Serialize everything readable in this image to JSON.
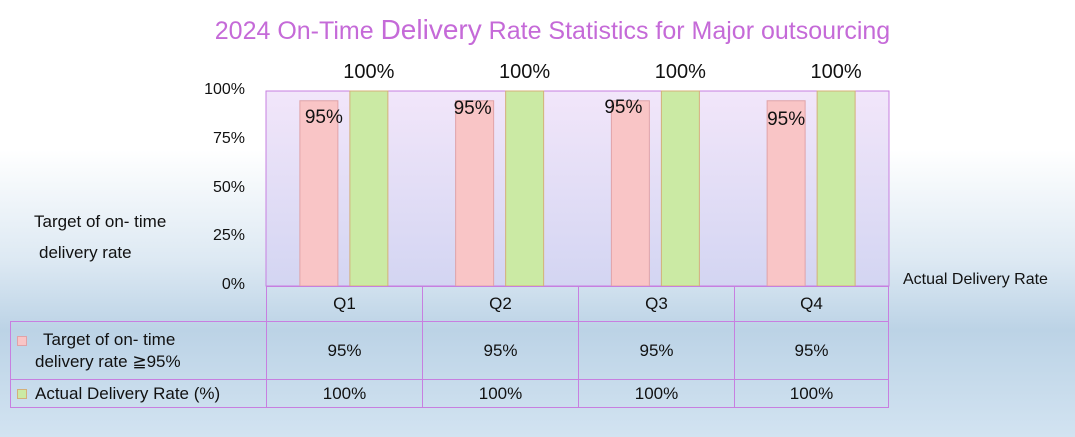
{
  "title": {
    "prefix": "2024 On-Time ",
    "emphasis": "Delivery",
    "suffix": " Rate Statistics for Major outsourcing"
  },
  "colors": {
    "title": "#c56ad8",
    "target_fill": "#f9c5c6",
    "target_stroke": "#e0a3a8",
    "actual_fill": "#cbeaa4",
    "actual_stroke": "#d4b07a",
    "plot_border": "#c77fe0"
  },
  "side_label": {
    "line1": "Target of on- time",
    "line2": "delivery rate"
  },
  "right_label": "Actual Delivery Rate",
  "chart_data": {
    "type": "bar",
    "title": "2024 On-Time Delivery Rate Statistics for Major outsourcing",
    "categories": [
      "Q1",
      "Q2",
      "Q3",
      "Q4"
    ],
    "series": [
      {
        "name": "Target of on- time delivery rate ≧95%",
        "values": [
          95,
          95,
          95,
          95
        ]
      },
      {
        "name": "Actual Delivery Rate (%)",
        "values": [
          100,
          100,
          100,
          100
        ]
      }
    ],
    "data_labels": [
      [
        "95%",
        "95%",
        "95%",
        "95%"
      ],
      [
        "100%",
        "100%",
        "100%",
        "100%"
      ]
    ],
    "y_ticks": [
      "0%",
      "25%",
      "50%",
      "75%",
      "100%"
    ],
    "ylim": [
      0,
      100
    ],
    "xlabel": "",
    "ylabel": "",
    "legend": "data table below chart"
  },
  "table": {
    "rows": [
      {
        "label_line1": "Target of on- time",
        "label_line2": "delivery rate ≧95%",
        "cells": [
          "95%",
          "95%",
          "95%",
          "95%"
        ]
      },
      {
        "label": "Actual Delivery Rate (%)",
        "cells": [
          "100%",
          "100%",
          "100%",
          "100%"
        ]
      }
    ]
  }
}
